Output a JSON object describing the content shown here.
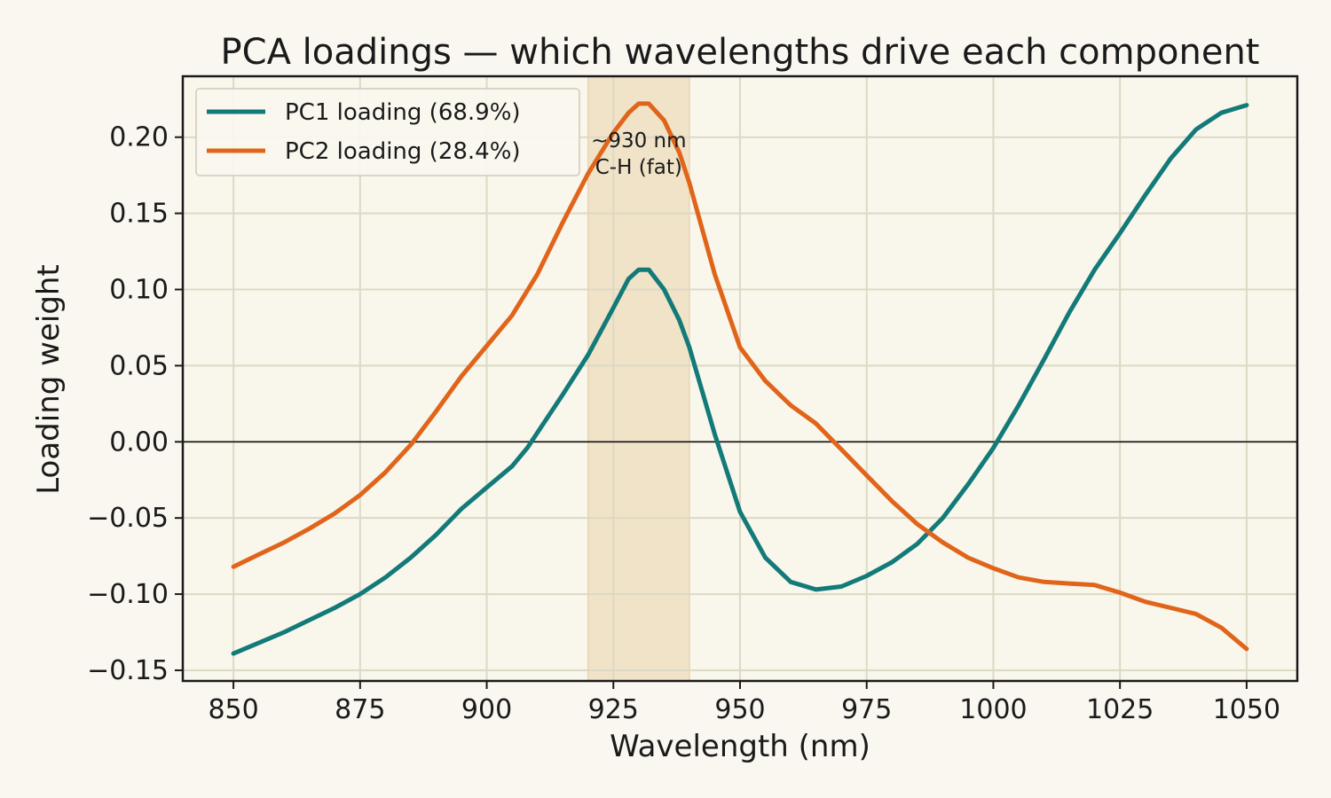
{
  "chart_data": {
    "type": "line",
    "title": "PCA loadings — which wavelengths drive each component",
    "xlabel": "Wavelength (nm)",
    "ylabel": "Loading weight",
    "xlim": [
      840,
      1060
    ],
    "ylim": [
      -0.157,
      0.24
    ],
    "xticks": [
      850,
      875,
      900,
      925,
      950,
      975,
      1000,
      1025,
      1050
    ],
    "xtick_labels": [
      "850",
      "875",
      "900",
      "925",
      "950",
      "975",
      "1000",
      "1025",
      "1050"
    ],
    "yticks": [
      -0.15,
      -0.1,
      -0.05,
      0.0,
      0.05,
      0.1,
      0.15,
      0.2
    ],
    "ytick_labels": [
      "−0.15",
      "−0.10",
      "−0.05",
      "0.00",
      "0.05",
      "0.10",
      "0.15",
      "0.20"
    ],
    "grid": true,
    "zero_line": true,
    "legend_position": "top-left",
    "highlight_band": {
      "x_range": [
        920,
        940
      ],
      "label_line1": "~930 nm",
      "label_line2": "C-H (fat)",
      "label_x": 930,
      "label_y": 0.19,
      "color": "#f0e3c8"
    },
    "series": [
      {
        "name": "PC1 loading (68.9%)",
        "color": "#127a78",
        "x": [
          850,
          855,
          860,
          865,
          870,
          875,
          880,
          885,
          890,
          895,
          900,
          905,
          908,
          910,
          915,
          920,
          925,
          928,
          930,
          932,
          935,
          938,
          940,
          945,
          950,
          955,
          960,
          965,
          970,
          975,
          980,
          985,
          990,
          995,
          1000,
          1005,
          1010,
          1015,
          1020,
          1025,
          1030,
          1035,
          1040,
          1045,
          1050
        ],
        "values": [
          -0.139,
          -0.132,
          -0.125,
          -0.117,
          -0.109,
          -0.1,
          -0.089,
          -0.076,
          -0.061,
          -0.044,
          -0.03,
          -0.016,
          -0.004,
          0.006,
          0.031,
          0.057,
          0.088,
          0.107,
          0.113,
          0.113,
          0.1,
          0.08,
          0.062,
          0.005,
          -0.046,
          -0.076,
          -0.092,
          -0.097,
          -0.095,
          -0.088,
          -0.079,
          -0.067,
          -0.05,
          -0.028,
          -0.004,
          0.024,
          0.054,
          0.085,
          0.113,
          0.137,
          0.162,
          0.186,
          0.205,
          0.216,
          0.221
        ]
      },
      {
        "name": "PC2 loading (28.4%)",
        "color": "#e0651a",
        "x": [
          850,
          855,
          860,
          865,
          870,
          875,
          880,
          885,
          890,
          895,
          900,
          905,
          910,
          915,
          920,
          925,
          928,
          930,
          932,
          935,
          938,
          940,
          945,
          950,
          955,
          960,
          965,
          970,
          975,
          980,
          985,
          990,
          995,
          1000,
          1005,
          1010,
          1015,
          1020,
          1025,
          1030,
          1035,
          1040,
          1045,
          1050
        ],
        "values": [
          -0.082,
          -0.074,
          -0.066,
          -0.057,
          -0.047,
          -0.035,
          -0.02,
          -0.002,
          0.02,
          0.043,
          0.063,
          0.083,
          0.11,
          0.144,
          0.176,
          0.203,
          0.216,
          0.222,
          0.222,
          0.211,
          0.19,
          0.17,
          0.11,
          0.062,
          0.04,
          0.024,
          0.012,
          -0.005,
          -0.022,
          -0.039,
          -0.054,
          -0.066,
          -0.076,
          -0.083,
          -0.089,
          -0.092,
          -0.093,
          -0.094,
          -0.099,
          -0.105,
          -0.109,
          -0.113,
          -0.122,
          -0.136
        ]
      }
    ]
  }
}
